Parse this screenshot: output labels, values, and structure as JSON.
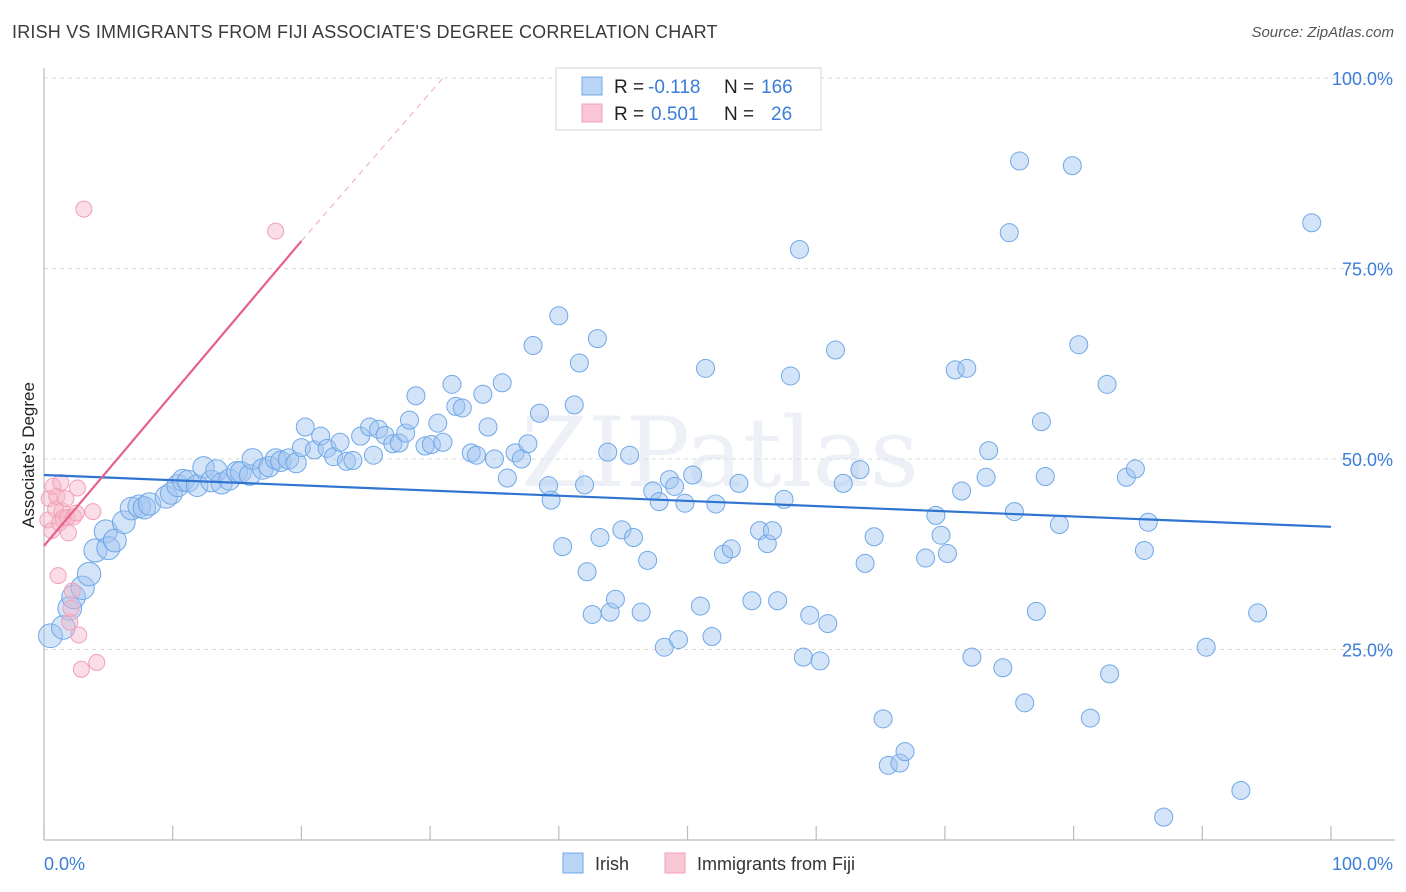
{
  "title": "IRISH VS IMMIGRANTS FROM FIJI ASSOCIATE'S DEGREE CORRELATION CHART",
  "source": "Source: ZipAtlas.com",
  "colors": {
    "irish": "#6fa8e8",
    "irish_line": "#2f74d0",
    "fiji": "#f2a0b8",
    "fiji_line": "#e8608a",
    "accent": "#3b7dd8"
  },
  "legend": {
    "rows": [
      {
        "r_label": "R =",
        "r_value": "-0.118",
        "n_label": "N =",
        "n_value": "166"
      },
      {
        "r_label": "R =",
        "r_value": "0.501",
        "n_label": "N =",
        "n_value": "26"
      }
    ]
  },
  "bottom_legend": [
    "Irish",
    "Immigrants from Fiji"
  ],
  "watermark": "ZIPatlas",
  "chart_data": {
    "type": "scatter",
    "title": "IRISH VS IMMIGRANTS FROM FIJI ASSOCIATE'S DEGREE CORRELATION CHART",
    "xlabel": "",
    "ylabel": "Associate's Degree",
    "xlim": [
      0,
      100
    ],
    "ylim": [
      0,
      100
    ],
    "x_ticks": [
      "0.0%",
      "100.0%"
    ],
    "y_ticks": [
      "25.0%",
      "50.0%",
      "75.0%",
      "100.0%"
    ],
    "grid": true,
    "legend_position": "top-center",
    "series": [
      {
        "name": "Irish",
        "trend": {
          "x0": 0,
          "y0": 47.9,
          "x1": 100,
          "y1": 41.1
        },
        "points": [
          [
            0.5,
            26.8
          ],
          [
            1.5,
            27.9
          ],
          [
            2.0,
            30.4
          ],
          [
            2.3,
            31.9
          ],
          [
            3.0,
            33.1
          ],
          [
            3.5,
            34.9
          ],
          [
            4.0,
            38.0
          ],
          [
            4.8,
            40.5
          ],
          [
            5.0,
            38.3
          ],
          [
            5.5,
            39.3
          ],
          [
            6.2,
            41.7
          ],
          [
            6.8,
            43.5
          ],
          [
            7.4,
            43.8
          ],
          [
            7.8,
            43.6
          ],
          [
            8.2,
            44.1
          ],
          [
            9.5,
            45.0
          ],
          [
            9.9,
            45.5
          ],
          [
            10.4,
            46.5
          ],
          [
            10.8,
            47.2
          ],
          [
            11.2,
            47.1
          ],
          [
            11.9,
            46.5
          ],
          [
            12.4,
            48.9
          ],
          [
            13.0,
            47.1
          ],
          [
            13.4,
            48.5
          ],
          [
            13.8,
            46.8
          ],
          [
            14.4,
            47.3
          ],
          [
            15.0,
            48.3
          ],
          [
            15.3,
            48.3
          ],
          [
            16.0,
            47.9
          ],
          [
            16.2,
            50.0
          ],
          [
            17.0,
            48.7
          ],
          [
            17.5,
            49.0
          ],
          [
            18.0,
            50.0
          ],
          [
            18.4,
            49.7
          ],
          [
            19.0,
            50.0
          ],
          [
            19.6,
            49.5
          ],
          [
            20.0,
            51.5
          ],
          [
            20.3,
            54.2
          ],
          [
            21.0,
            51.2
          ],
          [
            21.5,
            53.0
          ],
          [
            22.0,
            51.4
          ],
          [
            22.5,
            50.3
          ],
          [
            23.0,
            52.2
          ],
          [
            23.5,
            49.7
          ],
          [
            24.0,
            49.8
          ],
          [
            24.6,
            53.0
          ],
          [
            25.3,
            54.2
          ],
          [
            25.6,
            50.5
          ],
          [
            26.0,
            53.9
          ],
          [
            26.5,
            53.1
          ],
          [
            27.1,
            52.0
          ],
          [
            27.6,
            52.1
          ],
          [
            28.1,
            53.4
          ],
          [
            28.4,
            55.1
          ],
          [
            28.9,
            58.3
          ],
          [
            29.6,
            51.7
          ],
          [
            30.1,
            51.9
          ],
          [
            30.6,
            54.7
          ],
          [
            31.0,
            52.2
          ],
          [
            31.7,
            59.8
          ],
          [
            32.0,
            56.9
          ],
          [
            32.5,
            56.7
          ],
          [
            33.2,
            50.8
          ],
          [
            33.6,
            50.5
          ],
          [
            34.1,
            58.5
          ],
          [
            34.5,
            54.2
          ],
          [
            35.0,
            50.0
          ],
          [
            35.6,
            60.0
          ],
          [
            36.0,
            47.5
          ],
          [
            36.6,
            50.8
          ],
          [
            37.1,
            50.0
          ],
          [
            37.6,
            52.0
          ],
          [
            38.0,
            64.9
          ],
          [
            38.5,
            56.0
          ],
          [
            39.2,
            46.5
          ],
          [
            39.4,
            44.6
          ],
          [
            40.0,
            68.8
          ],
          [
            40.3,
            38.5
          ],
          [
            41.2,
            57.1
          ],
          [
            41.6,
            62.6
          ],
          [
            42.0,
            46.6
          ],
          [
            42.2,
            35.2
          ],
          [
            42.6,
            29.6
          ],
          [
            43.0,
            65.8
          ],
          [
            43.2,
            39.7
          ],
          [
            43.8,
            50.9
          ],
          [
            44.0,
            29.9
          ],
          [
            44.4,
            31.6
          ],
          [
            44.9,
            40.7
          ],
          [
            45.5,
            50.5
          ],
          [
            45.8,
            39.7
          ],
          [
            46.4,
            29.9
          ],
          [
            46.9,
            36.7
          ],
          [
            47.3,
            45.8
          ],
          [
            47.8,
            44.4
          ],
          [
            48.2,
            25.3
          ],
          [
            48.6,
            47.3
          ],
          [
            49.0,
            46.4
          ],
          [
            49.3,
            26.3
          ],
          [
            49.8,
            44.2
          ],
          [
            50.4,
            47.9
          ],
          [
            51.0,
            30.7
          ],
          [
            51.4,
            61.9
          ],
          [
            51.9,
            26.7
          ],
          [
            52.2,
            44.1
          ],
          [
            52.8,
            37.5
          ],
          [
            53.4,
            38.2
          ],
          [
            54.0,
            46.8
          ],
          [
            55.0,
            31.4
          ],
          [
            55.6,
            40.6
          ],
          [
            56.2,
            38.9
          ],
          [
            56.6,
            40.6
          ],
          [
            57.0,
            31.4
          ],
          [
            57.5,
            44.7
          ],
          [
            58.0,
            60.9
          ],
          [
            58.7,
            77.5
          ],
          [
            59.0,
            24.0
          ],
          [
            59.5,
            29.5
          ],
          [
            60.3,
            23.5
          ],
          [
            60.9,
            28.4
          ],
          [
            61.5,
            64.3
          ],
          [
            62.1,
            46.8
          ],
          [
            63.4,
            48.6
          ],
          [
            63.8,
            36.3
          ],
          [
            64.5,
            39.8
          ],
          [
            65.2,
            15.9
          ],
          [
            65.6,
            9.8
          ],
          [
            66.5,
            10.1
          ],
          [
            66.9,
            11.6
          ],
          [
            68.5,
            37.0
          ],
          [
            69.3,
            42.6
          ],
          [
            69.7,
            40.0
          ],
          [
            70.2,
            37.6
          ],
          [
            70.8,
            61.7
          ],
          [
            71.3,
            45.8
          ],
          [
            71.7,
            61.9
          ],
          [
            72.1,
            24.0
          ],
          [
            73.2,
            47.6
          ],
          [
            73.4,
            51.1
          ],
          [
            74.5,
            22.6
          ],
          [
            75.0,
            79.7
          ],
          [
            75.4,
            43.1
          ],
          [
            75.8,
            89.1
          ],
          [
            76.2,
            18.0
          ],
          [
            77.1,
            30.0
          ],
          [
            77.5,
            54.9
          ],
          [
            77.8,
            47.7
          ],
          [
            78.9,
            41.4
          ],
          [
            79.9,
            88.5
          ],
          [
            80.4,
            65.0
          ],
          [
            81.3,
            16.0
          ],
          [
            82.6,
            59.8
          ],
          [
            82.8,
            21.8
          ],
          [
            84.1,
            47.6
          ],
          [
            84.8,
            48.7
          ],
          [
            85.5,
            38.0
          ],
          [
            85.8,
            41.7
          ],
          [
            87.0,
            3.0
          ],
          [
            90.3,
            25.3
          ],
          [
            93.0,
            6.5
          ],
          [
            94.3,
            29.8
          ],
          [
            98.5,
            81.0
          ]
        ]
      },
      {
        "name": "Immigrants from Fiji",
        "trend": {
          "x0": 0,
          "y0": 38.6,
          "x1": 20,
          "y1": 78.6,
          "dash_x1": 31,
          "dash_y1": 100
        },
        "points": [
          [
            0.3,
            42.0
          ],
          [
            0.4,
            44.8
          ],
          [
            0.6,
            40.6
          ],
          [
            0.7,
            46.4
          ],
          [
            0.9,
            43.4
          ],
          [
            1.0,
            45.1
          ],
          [
            1.1,
            34.7
          ],
          [
            1.2,
            41.6
          ],
          [
            1.3,
            46.9
          ],
          [
            1.4,
            43.2
          ],
          [
            1.5,
            42.3
          ],
          [
            1.7,
            44.8
          ],
          [
            1.8,
            42.3
          ],
          [
            1.9,
            40.3
          ],
          [
            2.0,
            28.6
          ],
          [
            2.1,
            30.4
          ],
          [
            2.2,
            32.7
          ],
          [
            2.3,
            42.4
          ],
          [
            2.5,
            42.9
          ],
          [
            2.6,
            46.2
          ],
          [
            2.7,
            26.9
          ],
          [
            2.9,
            22.4
          ],
          [
            3.1,
            82.8
          ],
          [
            3.8,
            43.1
          ],
          [
            4.1,
            23.3
          ],
          [
            18.0,
            79.9
          ]
        ]
      }
    ]
  }
}
